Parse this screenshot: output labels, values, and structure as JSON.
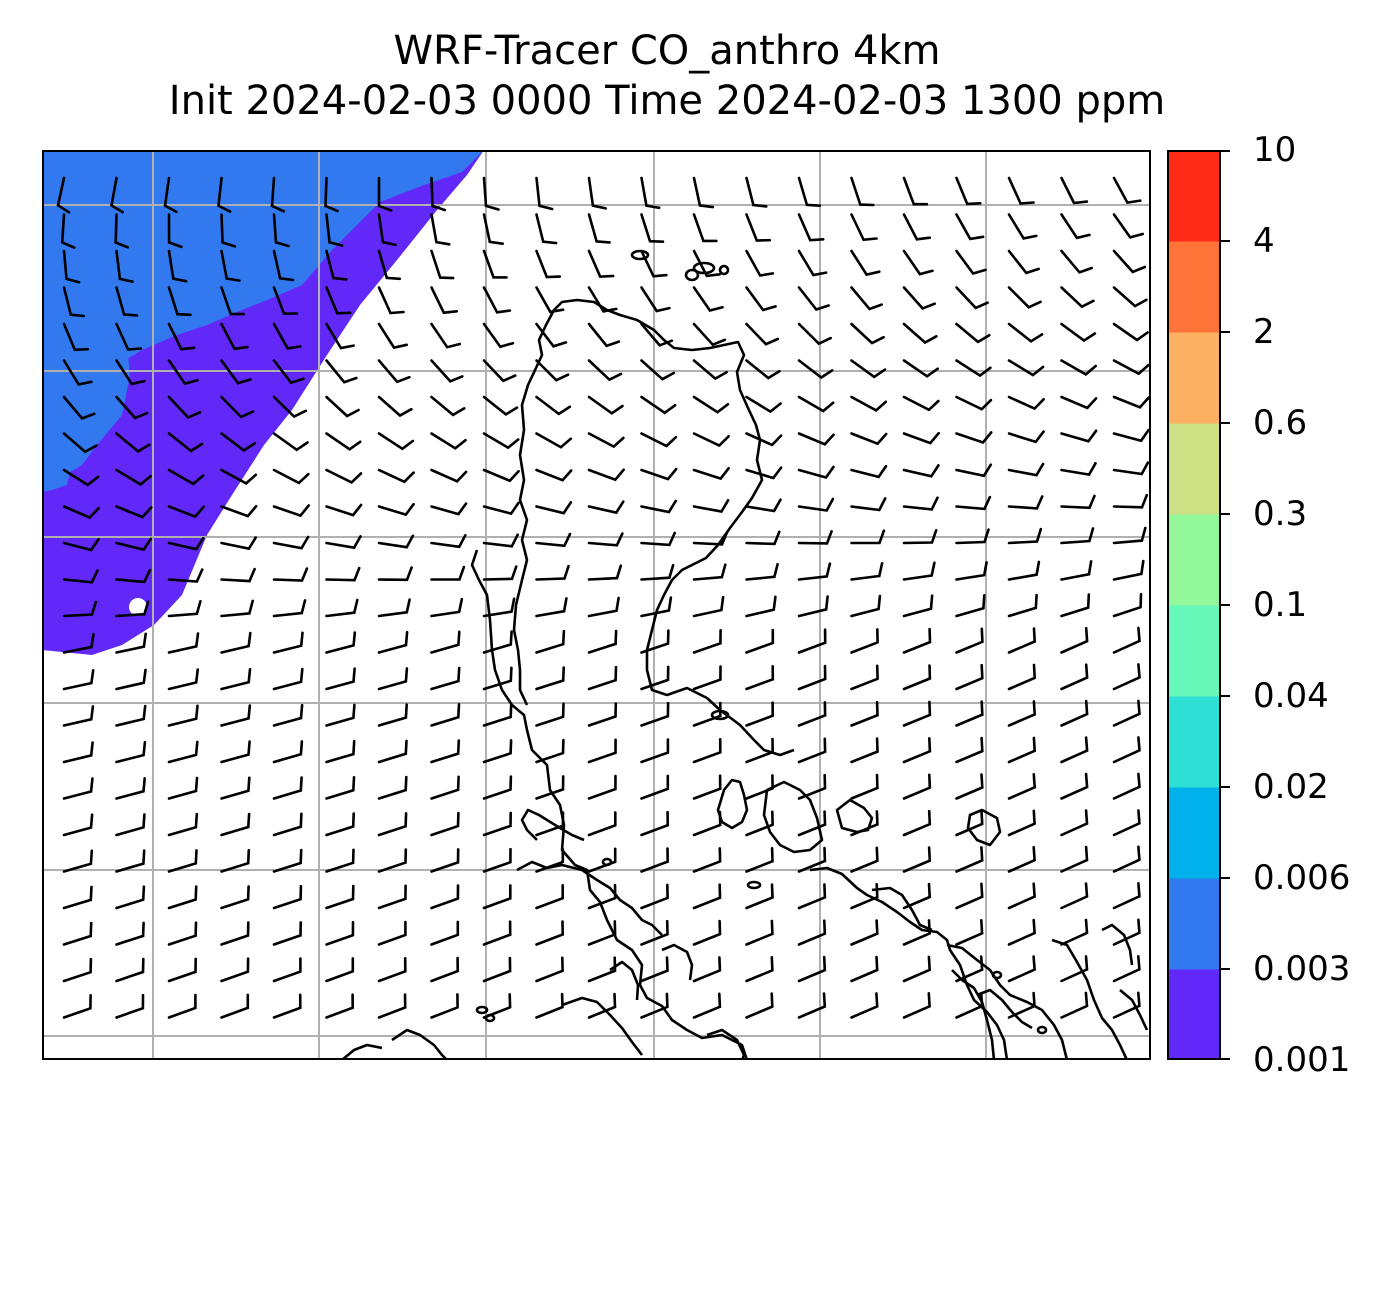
{
  "title": {
    "line1": "WRF-Tracer CO_anthro 4km",
    "line2": "Init 2024-02-03 0000 Time 2024-02-03 1300 ppm"
  },
  "colorbar": {
    "levels": [
      "0.001",
      "0.003",
      "0.006",
      "0.02",
      "0.04",
      "0.1",
      "0.3",
      "0.6",
      "2",
      "4",
      "10"
    ],
    "colors": [
      "#6128f8",
      "#3279f0",
      "#01b1ec",
      "#2ddfd5",
      "#66f9b9",
      "#92f899",
      "#cfe084",
      "#fcb062",
      "#fd7338",
      "#ff2b17"
    ]
  },
  "map": {
    "grid_color": "#b0b0b0",
    "tracer_colors": [
      "#6128f8",
      "#3279f0"
    ],
    "wind_barbs": true,
    "coastlines": true
  }
}
